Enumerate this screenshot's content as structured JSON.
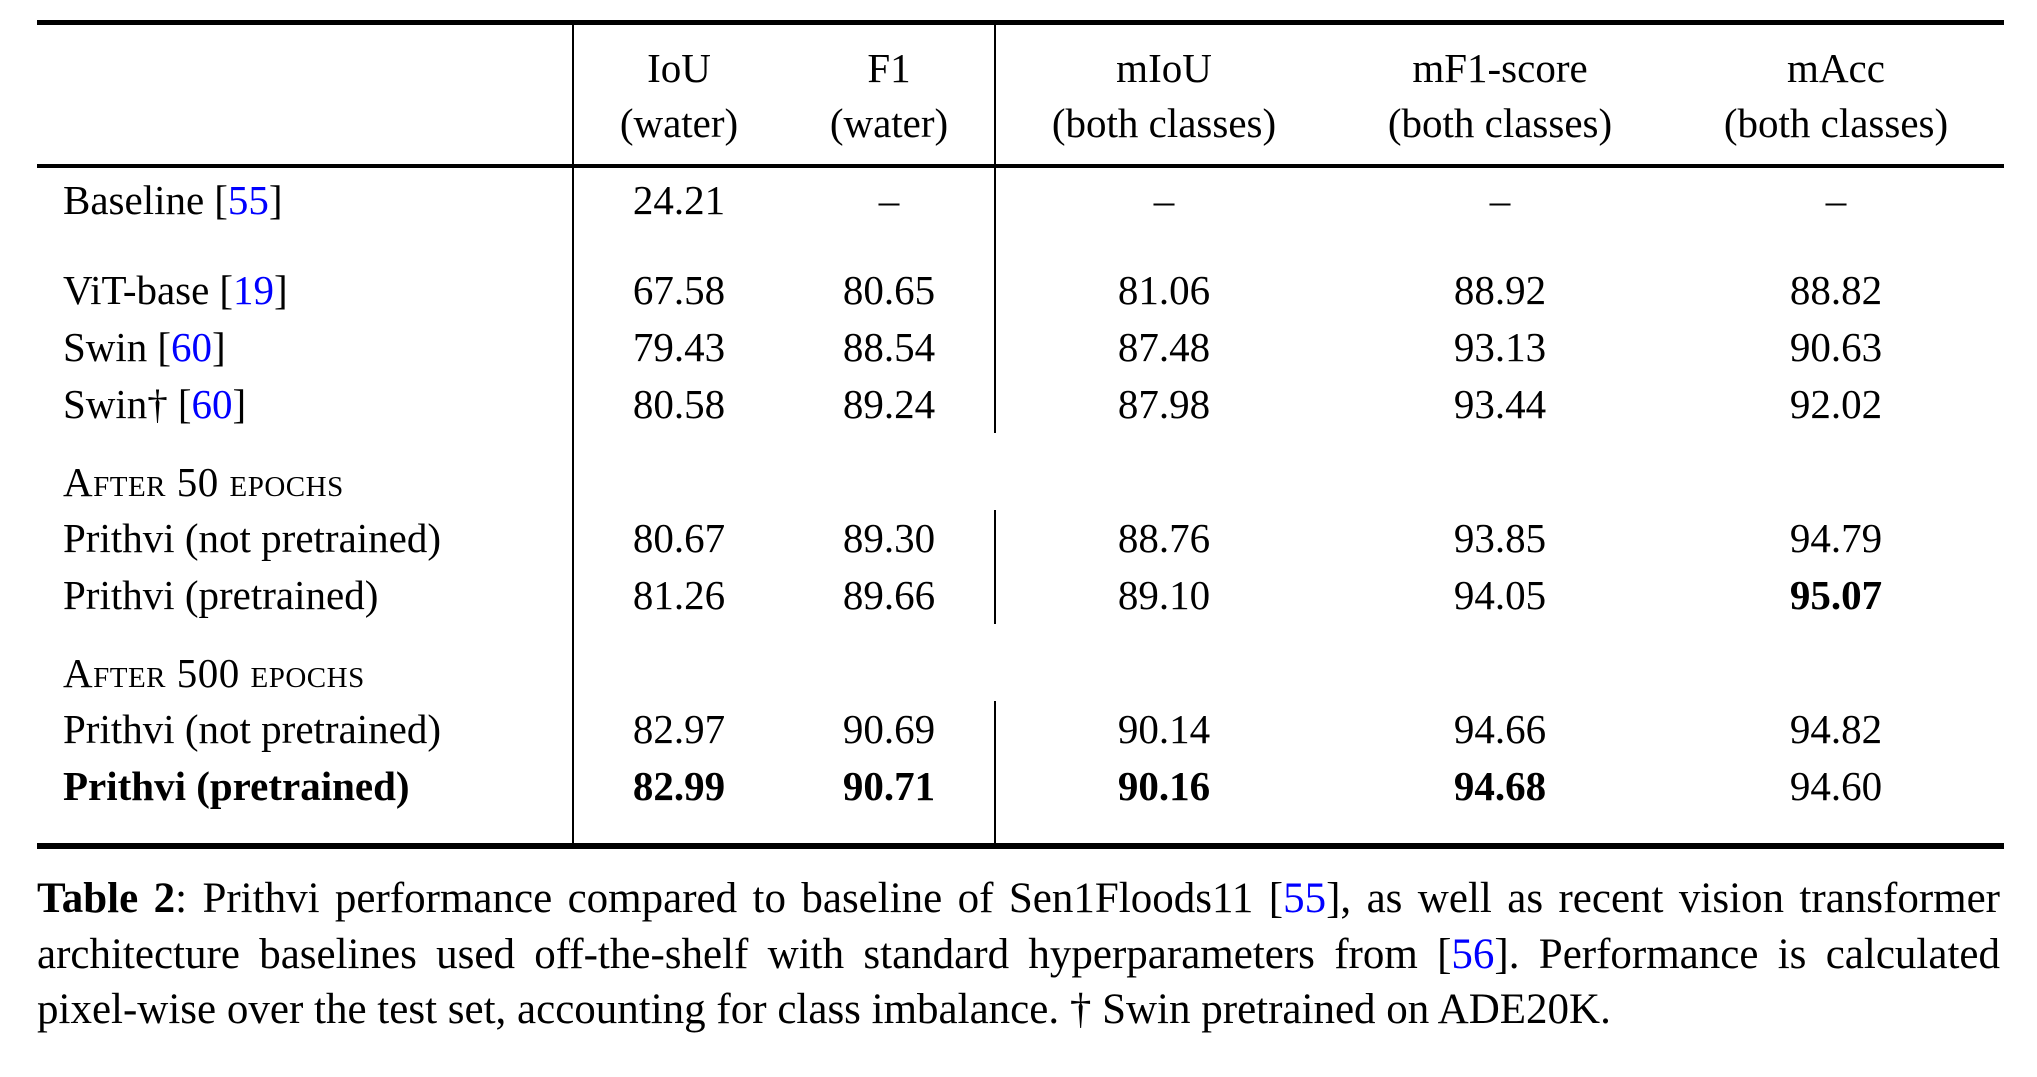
{
  "page": {
    "background": "#ffffff",
    "text_color": "#000000",
    "citation_color": "#0000ff"
  },
  "table": {
    "cite_open": "[",
    "cite_close": "]",
    "header": {
      "cols": [
        {
          "top": "",
          "bottom": ""
        },
        {
          "top": "IoU",
          "bottom": "(water)"
        },
        {
          "top": "F1",
          "bottom": "(water)"
        },
        {
          "top": "mIoU",
          "bottom": "(both classes)"
        },
        {
          "top": "mF1-score",
          "bottom": "(both classes)"
        },
        {
          "top": "mAcc",
          "bottom": "(both classes)"
        }
      ]
    },
    "rows": [
      {
        "type": "data",
        "tall": true,
        "label": "Baseline",
        "cite": "55",
        "values": [
          "24.21",
          "–",
          "–",
          "–",
          "–"
        ],
        "bold_label": false,
        "bold_values": [
          false,
          false,
          false,
          false,
          false
        ]
      },
      {
        "type": "spacer"
      },
      {
        "type": "data",
        "label": "ViT-base",
        "cite": "19",
        "values": [
          "67.58",
          "80.65",
          "81.06",
          "88.92",
          "88.82"
        ],
        "bold_label": false,
        "bold_values": [
          false,
          false,
          false,
          false,
          false
        ]
      },
      {
        "type": "data",
        "label": "Swin",
        "cite": "60",
        "values": [
          "79.43",
          "88.54",
          "87.48",
          "93.13",
          "90.63"
        ],
        "bold_label": false,
        "bold_values": [
          false,
          false,
          false,
          false,
          false
        ]
      },
      {
        "type": "data",
        "label": "Swin†",
        "cite": "60",
        "values": [
          "80.58",
          "89.24",
          "87.98",
          "93.44",
          "92.02"
        ],
        "bold_label": false,
        "bold_values": [
          false,
          false,
          false,
          false,
          false
        ]
      },
      {
        "type": "section",
        "label": "After 50 epochs"
      },
      {
        "type": "data",
        "label": "Prithvi (not pretrained)",
        "cite": null,
        "values": [
          "80.67",
          "89.30",
          "88.76",
          "93.85",
          "94.79"
        ],
        "bold_label": false,
        "bold_values": [
          false,
          false,
          false,
          false,
          false
        ]
      },
      {
        "type": "data",
        "label": "Prithvi (pretrained)",
        "cite": null,
        "values": [
          "81.26",
          "89.66",
          "89.10",
          "94.05",
          "95.07"
        ],
        "bold_label": false,
        "bold_values": [
          false,
          false,
          false,
          false,
          true
        ]
      },
      {
        "type": "section",
        "label": "After 500 epochs"
      },
      {
        "type": "data",
        "label": "Prithvi (not pretrained)",
        "cite": null,
        "values": [
          "82.97",
          "90.69",
          "90.14",
          "94.66",
          "94.82"
        ],
        "bold_label": false,
        "bold_values": [
          false,
          false,
          false,
          false,
          false
        ]
      },
      {
        "type": "data",
        "label": "Prithvi (pretrained)",
        "cite": null,
        "values": [
          "82.99",
          "90.71",
          "90.16",
          "94.68",
          "94.60"
        ],
        "bold_label": true,
        "bold_values": [
          true,
          true,
          true,
          true,
          false
        ]
      },
      {
        "type": "spacer",
        "bottom": true
      }
    ]
  },
  "caption": {
    "segments": [
      {
        "text": "Table 2",
        "style": "bold"
      },
      {
        "text": ": Prithvi performance compared to baseline of Sen1Floods11 [",
        "style": "normal"
      },
      {
        "text": "55",
        "style": "cite"
      },
      {
        "text": "], as well as recent vision transformer architecture baselines used off-the-shelf with standard hyperparameters from [",
        "style": "normal"
      },
      {
        "text": "56",
        "style": "cite"
      },
      {
        "text": "]. Performance is calculated pixel-wise over the test set, accounting for class imbalance. † Swin pretrained on ADE20K.",
        "style": "normal"
      }
    ]
  }
}
